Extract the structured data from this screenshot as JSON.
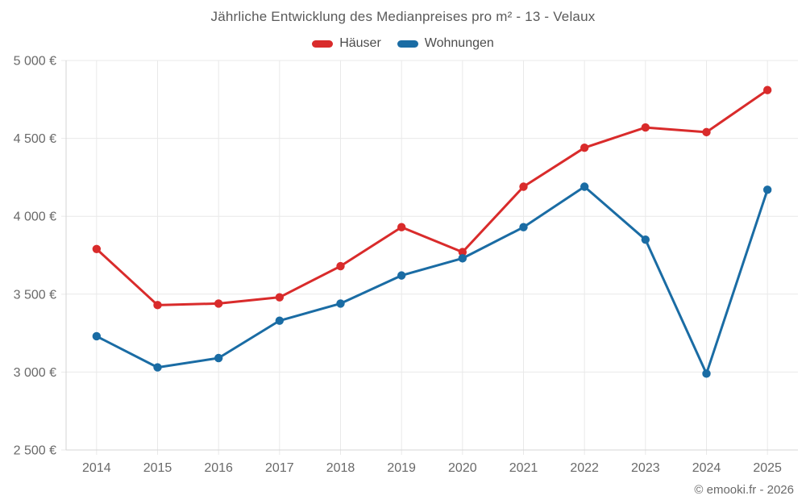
{
  "title": "Jährliche Entwicklung des Medianpreises pro m² - 13 - Velaux",
  "footer": "© emooki.fr - 2026",
  "colors": {
    "hauser": "#d92b2b",
    "wohnungen": "#1a6ca4",
    "grid": "#e9e9e9",
    "axis": "#d5d5d5",
    "tick_text": "#696969",
    "title_text": "#5a5a5a",
    "background": "#ffffff"
  },
  "legend": [
    {
      "label": "Häuser",
      "color": "#d92b2b"
    },
    {
      "label": "Wohnungen",
      "color": "#1a6ca4"
    }
  ],
  "chart_data": {
    "type": "line",
    "title": "Jährliche Entwicklung des Medianpreises pro m² - 13 - Velaux",
    "categories": [
      "2014",
      "2015",
      "2016",
      "2017",
      "2018",
      "2019",
      "2020",
      "2021",
      "2022",
      "2023",
      "2024",
      "2025"
    ],
    "series": [
      {
        "name": "Häuser",
        "color": "#d92b2b",
        "values": [
          3790,
          3430,
          3440,
          3480,
          3680,
          3930,
          3770,
          4190,
          4440,
          4570,
          4540,
          4810
        ]
      },
      {
        "name": "Wohnungen",
        "color": "#1a6ca4",
        "values": [
          3230,
          3030,
          3090,
          3330,
          3440,
          3620,
          3730,
          3930,
          4190,
          3850,
          2990,
          4170
        ]
      }
    ],
    "xlabel": "",
    "ylabel": "",
    "ylim": [
      2500,
      5000
    ],
    "ytick_step": 500,
    "ytick_labels": [
      "2 500 €",
      "3 000 €",
      "3 500 €",
      "4 000 €",
      "4 500 €",
      "5 000 €"
    ],
    "grid": true,
    "legend_position": "top",
    "marker": "circle",
    "units": "€/m²"
  }
}
